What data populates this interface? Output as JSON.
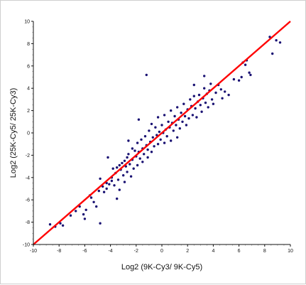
{
  "chart_data": {
    "type": "scatter",
    "title": "",
    "xlabel": "Log2 (9K-Cy3/ 9K-Cy5)",
    "ylabel": "Log2 (25K-Cy5/ 25K-Cy3)",
    "xlim": [
      -10,
      10
    ],
    "ylim": [
      -10,
      10
    ],
    "xticks": [
      -10,
      -8,
      -6,
      -4,
      -2,
      0,
      2,
      4,
      6,
      8,
      10
    ],
    "yticks": [
      -10,
      -8,
      -6,
      -4,
      -2,
      0,
      2,
      4,
      6,
      8,
      10
    ],
    "grid": false,
    "point_color": "#1a1273",
    "line_color": "#ff0000",
    "reference_line": {
      "x": [
        -10,
        10
      ],
      "y": [
        -10,
        10
      ]
    },
    "series": [
      {
        "points": [
          [
            -8.7,
            -8.2
          ],
          [
            -8.3,
            -8.4
          ],
          [
            -7.9,
            -8.1
          ],
          [
            -7.7,
            -8.3
          ],
          [
            -6.1,
            -7.3
          ],
          [
            -6.0,
            -7.7
          ],
          [
            -5.9,
            -6.9
          ],
          [
            -5.6,
            -5.6
          ],
          [
            -5.5,
            -5.8
          ],
          [
            -5.3,
            -6.2
          ],
          [
            -5.1,
            -6.6
          ],
          [
            -4.9,
            -5.2
          ],
          [
            -4.8,
            -4.1
          ],
          [
            -4.8,
            -8.1
          ],
          [
            -4.6,
            -4.8
          ],
          [
            -4.5,
            -5.3
          ],
          [
            -4.3,
            -4.5
          ],
          [
            -4.3,
            -5.0
          ],
          [
            -4.1,
            -4.6
          ],
          [
            -3.9,
            -4.0
          ],
          [
            -3.9,
            -4.3
          ],
          [
            -3.8,
            -3.2
          ],
          [
            -3.7,
            -4.7
          ],
          [
            -3.6,
            -3.6
          ],
          [
            -3.5,
            -3.1
          ],
          [
            -3.4,
            -4.2
          ],
          [
            -3.3,
            -2.9
          ],
          [
            -3.3,
            -5.1
          ],
          [
            -3.2,
            -3.3
          ],
          [
            -3.1,
            -2.7
          ],
          [
            -3.0,
            -3.8
          ],
          [
            -2.9,
            -2.5
          ],
          [
            -2.9,
            -4.4
          ],
          [
            -2.8,
            -3.0
          ],
          [
            -2.7,
            -2.2
          ],
          [
            -2.7,
            -3.5
          ],
          [
            -2.6,
            -1.9
          ],
          [
            -2.5,
            -2.8
          ],
          [
            -2.4,
            -3.9
          ],
          [
            -2.3,
            -1.4
          ],
          [
            -2.3,
            -2.4
          ],
          [
            -2.2,
            -3.2
          ],
          [
            -2.1,
            -1.6
          ],
          [
            -2.0,
            -2.1
          ],
          [
            -1.9,
            -0.9
          ],
          [
            -1.9,
            -2.9
          ],
          [
            -1.8,
            -1.7
          ],
          [
            -1.7,
            -2.3
          ],
          [
            -1.6,
            -0.6
          ],
          [
            -1.5,
            -1.4
          ],
          [
            -1.5,
            -2.6
          ],
          [
            -1.4,
            -1.9
          ],
          [
            -1.3,
            -0.3
          ],
          [
            -1.2,
            -1.1
          ],
          [
            -1.1,
            -2.2
          ],
          [
            -1.1,
            -1.5
          ],
          [
            -1.0,
            0.2
          ],
          [
            -0.9,
            -0.8
          ],
          [
            -0.8,
            -1.7
          ],
          [
            -0.8,
            0.8
          ],
          [
            -0.7,
            -0.4
          ],
          [
            -0.6,
            -1.2
          ],
          [
            -0.5,
            0.5
          ],
          [
            -0.4,
            -0.2
          ],
          [
            -0.3,
            -1.0
          ],
          [
            -0.3,
            1.4
          ],
          [
            -0.2,
            0.1
          ],
          [
            -0.1,
            -0.6
          ],
          [
            0.0,
            0.7
          ],
          [
            0.1,
            0.0
          ],
          [
            0.2,
            -0.9
          ],
          [
            0.2,
            1.6
          ],
          [
            0.3,
            0.3
          ],
          [
            0.4,
            -0.3
          ],
          [
            0.5,
            1.0
          ],
          [
            0.6,
            0.5
          ],
          [
            0.7,
            -0.7
          ],
          [
            0.7,
            2.0
          ],
          [
            0.8,
            0.9
          ],
          [
            0.9,
            0.2
          ],
          [
            1.0,
            1.5
          ],
          [
            1.1,
            0.7
          ],
          [
            1.2,
            -0.4
          ],
          [
            1.2,
            2.3
          ],
          [
            1.3,
            1.2
          ],
          [
            1.4,
            0.4
          ],
          [
            1.5,
            1.8
          ],
          [
            1.6,
            1.0
          ],
          [
            1.7,
            2.6
          ],
          [
            1.8,
            1.5
          ],
          [
            1.9,
            0.7
          ],
          [
            2.0,
            2.1
          ],
          [
            2.1,
            1.3
          ],
          [
            2.2,
            3.0
          ],
          [
            2.3,
            2.4
          ],
          [
            2.4,
            1.6
          ],
          [
            2.5,
            3.3
          ],
          [
            2.6,
            2.2
          ],
          [
            2.7,
            1.4
          ],
          [
            2.8,
            2.8
          ],
          [
            2.9,
            3.4
          ],
          [
            3.0,
            2.5
          ],
          [
            3.1,
            1.9
          ],
          [
            3.2,
            3.1
          ],
          [
            3.3,
            4.0
          ],
          [
            3.4,
            2.7
          ],
          [
            3.5,
            3.5
          ],
          [
            3.6,
            2.3
          ],
          [
            3.7,
            3.8
          ],
          [
            3.8,
            4.4
          ],
          [
            3.9,
            3.0
          ],
          [
            4.0,
            2.6
          ],
          [
            4.2,
            3.6
          ],
          [
            4.4,
            4.3
          ],
          [
            4.6,
            3.9
          ],
          [
            4.9,
            3.7
          ],
          [
            5.2,
            3.4
          ],
          [
            5.6,
            4.8
          ],
          [
            6.0,
            4.7
          ],
          [
            6.2,
            5.0
          ],
          [
            6.3,
            6.3
          ],
          [
            6.5,
            6.1
          ],
          [
            6.6,
            6.5
          ],
          [
            6.8,
            5.4
          ],
          [
            6.9,
            5.2
          ],
          [
            8.4,
            8.6
          ],
          [
            8.6,
            7.1
          ],
          [
            8.9,
            8.3
          ],
          [
            9.2,
            8.1
          ],
          [
            -1.2,
            5.2
          ],
          [
            -7.1,
            -7.4
          ],
          [
            -6.7,
            -7.0
          ],
          [
            -6.4,
            -6.6
          ],
          [
            3.3,
            5.1
          ],
          [
            4.7,
            3.1
          ],
          [
            2.5,
            4.3
          ],
          [
            -2.6,
            -0.7
          ],
          [
            -1.8,
            1.2
          ],
          [
            -4.2,
            -2.2
          ],
          [
            -3.5,
            -5.9
          ]
        ]
      }
    ]
  }
}
